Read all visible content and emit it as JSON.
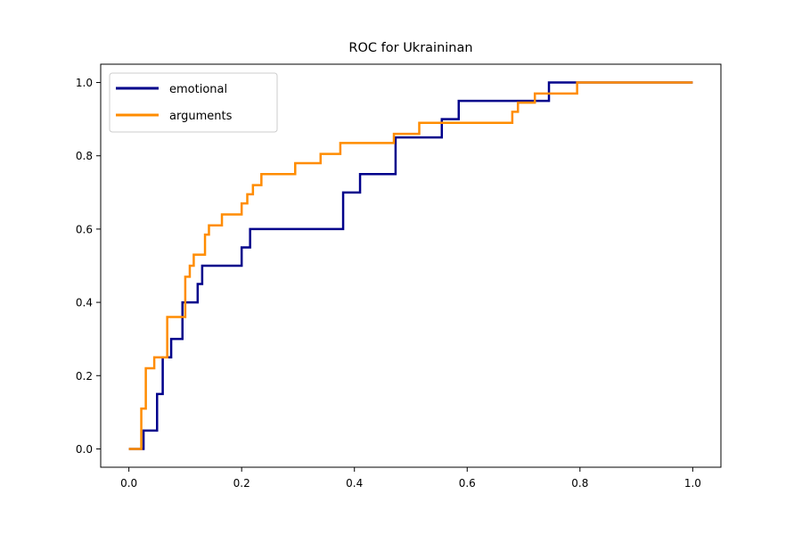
{
  "chart_data": {
    "type": "line",
    "title": "ROC for Ukraininan",
    "xlabel": "",
    "ylabel": "",
    "xlim": [
      -0.05,
      1.05
    ],
    "ylim": [
      -0.05,
      1.05
    ],
    "xticks": [
      "0.0",
      "0.2",
      "0.4",
      "0.6",
      "0.8",
      "1.0"
    ],
    "yticks": [
      "0.0",
      "0.2",
      "0.4",
      "0.6",
      "0.8",
      "1.0"
    ],
    "grid": false,
    "legend_position": "top-left",
    "series": [
      {
        "name": "emotional",
        "color": "#00008b",
        "x": [
          0,
          0.026,
          0.026,
          0.05,
          0.05,
          0.06,
          0.06,
          0.075,
          0.075,
          0.095,
          0.095,
          0.122,
          0.122,
          0.13,
          0.13,
          0.2,
          0.2,
          0.215,
          0.215,
          0.38,
          0.38,
          0.41,
          0.41,
          0.473,
          0.473,
          0.555,
          0.555,
          0.585,
          0.585,
          0.745,
          0.745,
          0.79,
          1.0
        ],
        "y": [
          0,
          0,
          0.05,
          0.05,
          0.15,
          0.15,
          0.25,
          0.25,
          0.3,
          0.3,
          0.4,
          0.4,
          0.45,
          0.45,
          0.5,
          0.5,
          0.55,
          0.55,
          0.6,
          0.6,
          0.7,
          0.7,
          0.75,
          0.75,
          0.85,
          0.85,
          0.9,
          0.9,
          0.95,
          0.95,
          1.0,
          1.0,
          1.0
        ]
      },
      {
        "name": "arguments",
        "color": "#ff8c00",
        "x": [
          0,
          0.022,
          0.022,
          0.03,
          0.03,
          0.045,
          0.045,
          0.068,
          0.068,
          0.1,
          0.1,
          0.108,
          0.108,
          0.115,
          0.115,
          0.135,
          0.135,
          0.142,
          0.142,
          0.165,
          0.165,
          0.2,
          0.2,
          0.21,
          0.21,
          0.22,
          0.22,
          0.235,
          0.235,
          0.295,
          0.295,
          0.34,
          0.34,
          0.375,
          0.375,
          0.47,
          0.47,
          0.515,
          0.515,
          0.555,
          0.555,
          0.68,
          0.68,
          0.69,
          0.69,
          0.72,
          0.72,
          0.795,
          0.795,
          1.0
        ],
        "y": [
          0,
          0,
          0.11,
          0.11,
          0.22,
          0.22,
          0.25,
          0.25,
          0.36,
          0.36,
          0.47,
          0.47,
          0.5,
          0.5,
          0.53,
          0.53,
          0.585,
          0.585,
          0.61,
          0.61,
          0.64,
          0.64,
          0.67,
          0.67,
          0.695,
          0.695,
          0.72,
          0.72,
          0.75,
          0.75,
          0.78,
          0.78,
          0.805,
          0.805,
          0.835,
          0.835,
          0.86,
          0.86,
          0.89,
          0.89,
          0.89,
          0.89,
          0.92,
          0.92,
          0.945,
          0.945,
          0.97,
          0.97,
          1.0,
          1.0
        ]
      }
    ]
  }
}
